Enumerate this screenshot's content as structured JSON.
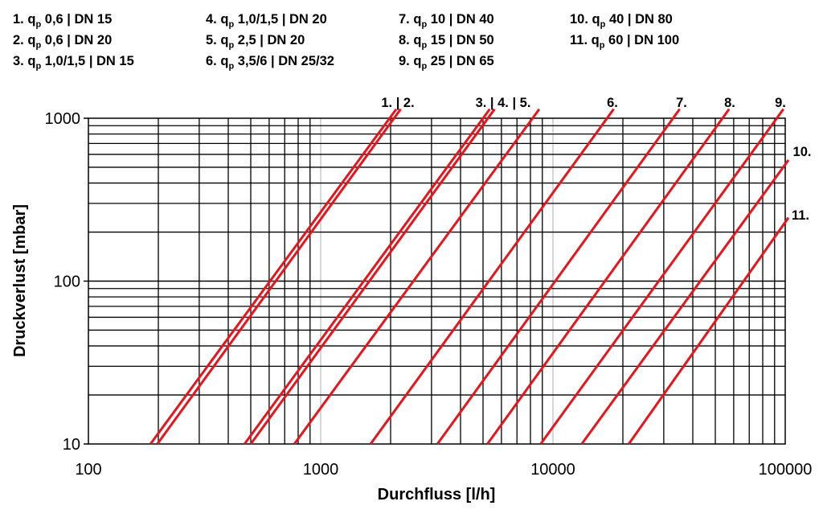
{
  "legend": [
    {
      "n": "1.",
      "q": "q",
      "sub": "p",
      "rest": " 0,6 | DN 15"
    },
    {
      "n": "2.",
      "q": "q",
      "sub": "p",
      "rest": " 0,6 | DN 20"
    },
    {
      "n": "3.",
      "q": "q",
      "sub": "p",
      "rest": " 1,0/1,5 | DN 15"
    },
    {
      "n": "4.",
      "q": "q",
      "sub": "p",
      "rest": " 1,0/1,5 | DN 20"
    },
    {
      "n": "5.",
      "q": "q",
      "sub": "p",
      "rest": " 2,5 | DN 20"
    },
    {
      "n": "6.",
      "q": "q",
      "sub": "p",
      "rest": " 3,5/6 | DN 25/32"
    },
    {
      "n": "7.",
      "q": "q",
      "sub": "p",
      "rest": " 10 | DN 40"
    },
    {
      "n": "8.",
      "q": "q",
      "sub": "p",
      "rest": " 15 | DN 50"
    },
    {
      "n": "9.",
      "q": "q",
      "sub": "p",
      "rest": " 25 | DN 65"
    },
    {
      "n": "10.",
      "q": "q",
      "sub": "p",
      "rest": " 40 | DN 80"
    },
    {
      "n": "11.",
      "q": "q",
      "sub": "p",
      "rest": " 60 | DN 100"
    }
  ],
  "chart_data": {
    "type": "line",
    "xlabel": "Durchfluss [l/h]",
    "ylabel": "Druckverlust [mbar]",
    "xscale": "log",
    "yscale": "log",
    "xlim": [
      100,
      100000
    ],
    "ylim": [
      10,
      1000
    ],
    "xticks": [
      "100",
      "1000",
      "10000",
      "100000"
    ],
    "yticks": [
      "10",
      "100",
      "1000"
    ],
    "grid": true,
    "line_color": "#e8141c",
    "series": [
      {
        "name": "1.",
        "points": [
          [
            185,
            10
          ],
          [
            1980,
            1000
          ]
        ]
      },
      {
        "name": "2.",
        "points": [
          [
            198,
            10
          ],
          [
            2070,
            1000
          ]
        ]
      },
      {
        "name": "3.",
        "points": [
          [
            470,
            10
          ],
          [
            5000,
            1000
          ]
        ]
      },
      {
        "name": "4.",
        "points": [
          [
            500,
            10
          ],
          [
            5250,
            1000
          ]
        ]
      },
      {
        "name": "5.",
        "points": [
          [
            770,
            10
          ],
          [
            8170,
            1000
          ]
        ]
      },
      {
        "name": "6.",
        "points": [
          [
            1640,
            10
          ],
          [
            17100,
            1000
          ]
        ]
      },
      {
        "name": "7.",
        "points": [
          [
            3180,
            10
          ],
          [
            32900,
            1000
          ]
        ]
      },
      {
        "name": "8.",
        "points": [
          [
            5220,
            10
          ],
          [
            53700,
            1000
          ]
        ]
      },
      {
        "name": "9.",
        "points": [
          [
            8850,
            10
          ],
          [
            92000,
            1000
          ]
        ]
      },
      {
        "name": "10.",
        "points": [
          [
            13300,
            10
          ],
          [
            100000,
            520
          ]
        ]
      },
      {
        "name": "11.",
        "points": [
          [
            21200,
            10
          ],
          [
            100000,
            230
          ]
        ]
      }
    ],
    "line_labels": [
      "1. | 2.",
      "3. | 4. | 5.",
      "6.",
      "7.",
      "8.",
      "9.",
      "10.",
      "11."
    ]
  }
}
